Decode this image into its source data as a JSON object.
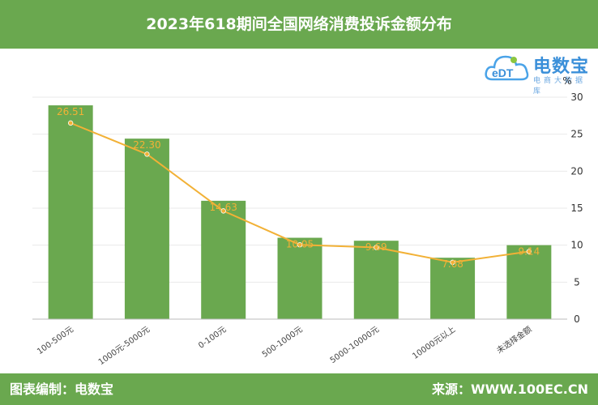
{
  "title": "2023年618期间全国网络消费投诉金额分布",
  "footer": {
    "credit": "图表编制：电数宝",
    "source": "来源：WWW.100EC.CN"
  },
  "logo": {
    "main": "电数宝",
    "sub": "电商大数据库",
    "icon": "cloud-logo-icon"
  },
  "colors": {
    "header": "#6aa84f",
    "bar": "#6aa84f",
    "line": "#f2b136",
    "label": "#f2b136"
  },
  "chart_data": {
    "type": "bar",
    "title": "2023年618期间全国网络消费投诉金额分布",
    "categories": [
      "100-500元",
      "1000元-5000元",
      "0-100元",
      "500-1000元",
      "5000-10000元",
      "10000元以上",
      "未选择金额"
    ],
    "series": [
      {
        "type": "bar",
        "values": [
          28.9,
          24.4,
          16.0,
          11.0,
          10.6,
          8.3,
          10.0
        ]
      },
      {
        "type": "line",
        "values": [
          26.51,
          22.3,
          14.63,
          10.05,
          9.69,
          7.68,
          9.14
        ]
      }
    ],
    "data_labels": [
      "26.51",
      "22.30",
      "14.63",
      "10.05",
      "9.69",
      "7.68",
      "9.14"
    ],
    "ylabel": "%",
    "y_ticks": [
      "0",
      "5",
      "10",
      "15",
      "20",
      "25",
      "30"
    ],
    "ylim": [
      0,
      30
    ],
    "y_axis_position": "right",
    "grid": true,
    "legend": "none"
  }
}
